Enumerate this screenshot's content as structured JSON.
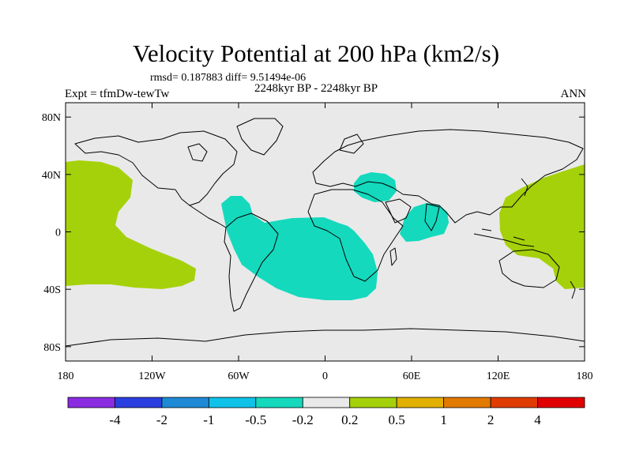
{
  "title": "Velocity Potential at 200 hPa (km2/s)",
  "stats_line": "rmsd= 0.187883 diff= 9.51494e-06",
  "left_label": "Expt = tfmDw-tewTw",
  "center_label": "2248kyr BP - 2248kyr BP",
  "right_label": "ANN",
  "map": {
    "lon_ticks": [
      "180",
      "120W",
      "60W",
      "0",
      "60E",
      "120E",
      "180"
    ],
    "lat_ticks": [
      "80N",
      "40N",
      "0",
      "40S",
      "80S"
    ],
    "background_color": "#e9e9e9",
    "regions": [
      {
        "name": "central-pacific-positive",
        "level": "0.2 to 0.5",
        "color": "#a5d10a"
      },
      {
        "name": "western-pacific-positive",
        "level": "0.2 to 0.5",
        "color": "#a5d10a"
      },
      {
        "name": "atlantic-south-america-negative",
        "level": "-0.5 to -0.2",
        "color": "#14d9bd"
      },
      {
        "name": "mediterranean-negative",
        "level": "-0.5 to -0.2",
        "color": "#14d9bd"
      },
      {
        "name": "indian-ocean-negative",
        "level": "-0.5 to -0.2",
        "color": "#14d9bd"
      }
    ]
  },
  "colorbar": {
    "colors": [
      "#8a2be2",
      "#2b3fe0",
      "#1e8ad6",
      "#10c2e8",
      "#14d9bd",
      "#e9e9e9",
      "#a5d10a",
      "#e2b100",
      "#e27a00",
      "#e03c00",
      "#e00000"
    ],
    "labels": [
      "-4",
      "-2",
      "-1",
      "-0.5",
      "-0.2",
      "0.2",
      "0.5",
      "1",
      "2",
      "4"
    ]
  }
}
